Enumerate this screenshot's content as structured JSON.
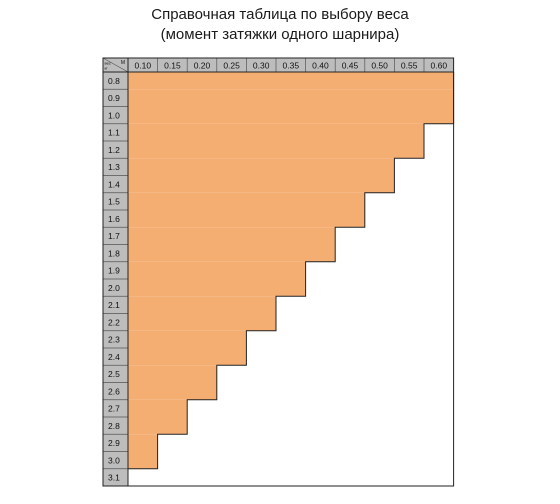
{
  "title": "Справочная таблица по выбору веса",
  "subtitle": "(момент затяжки одного шарнира)",
  "corner": {
    "top_label": "M",
    "side_label": "вес\nкг"
  },
  "colors": {
    "fill": "#F4AE72",
    "header_bg": "#BDBDBD",
    "grid": "#555555",
    "empty": "#FFFFFF"
  },
  "chart_data": {
    "type": "table",
    "title": "Справочная таблица по выбору веса",
    "subtitle": "(момент затяжки одного шарнира)",
    "columns": [
      "0.10",
      "0.15",
      "0.20",
      "0.25",
      "0.30",
      "0.35",
      "0.40",
      "0.45",
      "0.50",
      "0.55",
      "0.60"
    ],
    "rows": [
      "0.8",
      "0.9",
      "1.0",
      "1.1",
      "1.2",
      "1.3",
      "1.4",
      "1.5",
      "1.6",
      "1.7",
      "1.8",
      "1.9",
      "2.0",
      "2.1",
      "2.2",
      "2.3",
      "2.4",
      "2.5",
      "2.6",
      "2.7",
      "2.8",
      "2.9",
      "3.0",
      "3.1"
    ],
    "filled_columns_per_row": [
      11,
      11,
      11,
      10,
      10,
      9,
      9,
      8,
      8,
      7,
      7,
      6,
      6,
      5,
      5,
      4,
      4,
      3,
      3,
      2,
      2,
      1,
      1,
      0
    ]
  }
}
